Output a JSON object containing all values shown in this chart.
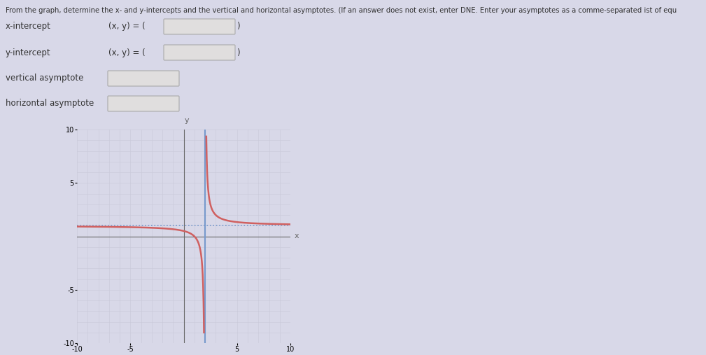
{
  "title_text": "From the graph, determine the x- and y-intercepts and the vertical and horizontal asymptotes. (If an answer does not exist, enter DNE. Enter your asymptotes as a comme-separated ist of equ",
  "xlabel": "x",
  "ylabel": "y",
  "xlim": [
    -10,
    10
  ],
  "ylim": [
    -10,
    10
  ],
  "xtick_labels_pos": [
    -10,
    -5,
    5,
    10
  ],
  "xtick_labels_val": [
    "-10",
    "-5",
    "5",
    "10"
  ],
  "ytick_labels_pos": [
    5,
    10,
    -5,
    -10
  ],
  "ytick_labels_val": [
    "5",
    "10",
    "-5",
    "-10"
  ],
  "x_minor_ticks": [
    -10,
    -9,
    -8,
    -7,
    -6,
    -5,
    -4,
    -3,
    -2,
    -1,
    0,
    1,
    2,
    3,
    4,
    5,
    6,
    7,
    8,
    9,
    10
  ],
  "y_minor_ticks": [
    -10,
    -9,
    -8,
    -7,
    -6,
    -5,
    -4,
    -3,
    -2,
    -1,
    0,
    1,
    2,
    3,
    4,
    5,
    6,
    7,
    8,
    9,
    10
  ],
  "vertical_asymptote_x": 2,
  "horizontal_asymptote_y": 1,
  "curve_color": "#d06060",
  "asymptote_color": "#7799cc",
  "horiz_asymptote_style": "dotted",
  "vert_asymptote_style": "solid",
  "grid_color": "#c8c8d8",
  "bg_color": "#d8d8e8",
  "axis_color": "#666666",
  "label_fontsize": 8,
  "tick_fontsize": 7,
  "form_labels": [
    "x-intercept",
    "y-intercept",
    "vertical asymptote",
    "horizontal asymptote"
  ],
  "form_prefix": [
    "(x, y) = (",
    "(x, y) = (",
    "",
    ""
  ],
  "form_suffix": [
    ")",
    ")",
    "",
    ""
  ],
  "box_color": "#e0dede",
  "box_edge_color": "#aaaaaa"
}
